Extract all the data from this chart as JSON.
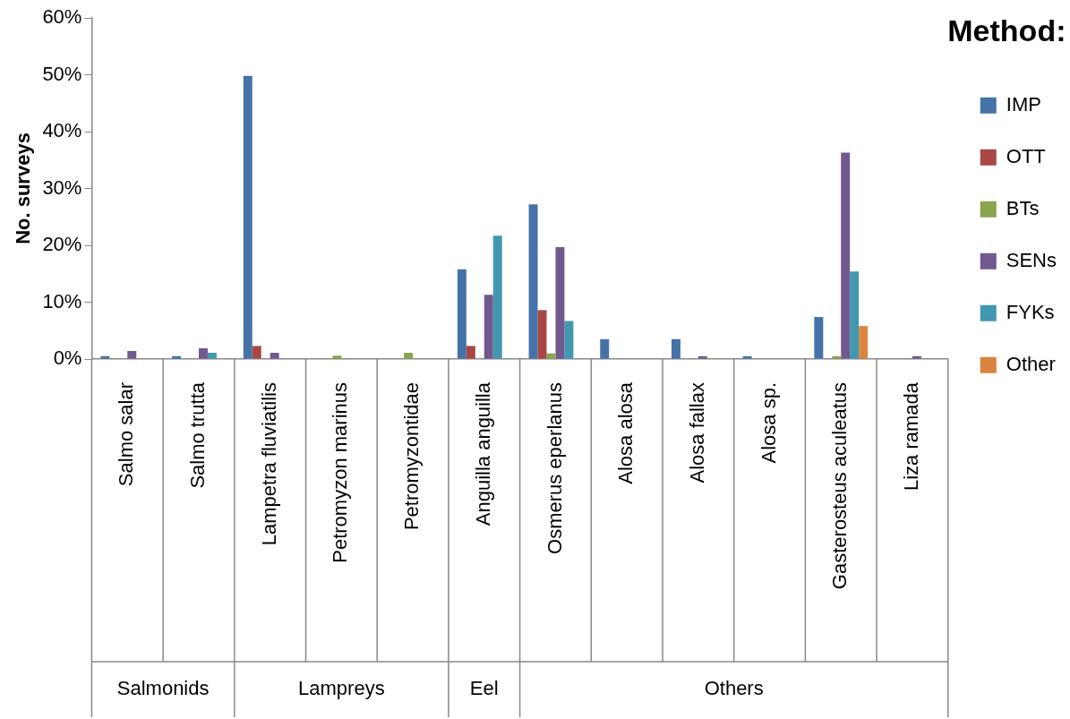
{
  "chart_data": {
    "type": "bar",
    "ylabel": "No. surveys",
    "legend_title": "Method:",
    "legend": "right",
    "grid": false,
    "categories": [
      "Salmo salar",
      "Salmo trutta",
      "Lampetra fluviatilis",
      "Petromyzon marinus",
      "Petromyzontidae",
      "Anguilla anguilla",
      "Osmerus eperlanus",
      "Alosa alosa",
      "Alosa fallax",
      "Alosa sp.",
      "Gasterosteus aculeatus",
      "Liza ramada"
    ],
    "ylim": [
      0,
      60
    ],
    "yticks": [
      {
        "value": 0,
        "label": "0%"
      },
      {
        "value": 10,
        "label": "10%"
      },
      {
        "value": 20,
        "label": "20%"
      },
      {
        "value": 30,
        "label": "30%"
      },
      {
        "value": 40,
        "label": "40%"
      },
      {
        "value": 50,
        "label": "50%"
      },
      {
        "value": 60,
        "label": "60%"
      }
    ],
    "series": [
      {
        "name": "IMP",
        "color": "#4572a7",
        "values": [
          0.5,
          0.5,
          49.8,
          0,
          0,
          15.8,
          27.2,
          3.5,
          3.5,
          0.5,
          7.4,
          0
        ]
      },
      {
        "name": "OTT",
        "color": "#aa4643",
        "values": [
          0,
          0,
          2.3,
          0,
          0,
          2.3,
          8.6,
          0,
          0,
          0,
          0,
          0
        ]
      },
      {
        "name": "BTs",
        "color": "#89a54e",
        "values": [
          0,
          0,
          0,
          0.6,
          1.1,
          0,
          1.0,
          0,
          0,
          0,
          0.5,
          0
        ]
      },
      {
        "name": "SENs",
        "color": "#71588f",
        "values": [
          1.4,
          1.9,
          1.1,
          0,
          0,
          11.3,
          19.7,
          0,
          0.5,
          0,
          36.3,
          0.5
        ]
      },
      {
        "name": "FYKs",
        "color": "#4198af",
        "values": [
          0,
          1.1,
          0,
          0,
          0,
          21.7,
          6.7,
          0,
          0,
          0,
          15.4,
          0
        ]
      },
      {
        "name": "Other",
        "color": "#db843d",
        "values": [
          0,
          0,
          0,
          0,
          0,
          0,
          0,
          0,
          0,
          0,
          5.8,
          0
        ]
      }
    ],
    "annotations": [
      "Salmonids",
      "Lampreys",
      "Eel",
      "Others"
    ]
  }
}
